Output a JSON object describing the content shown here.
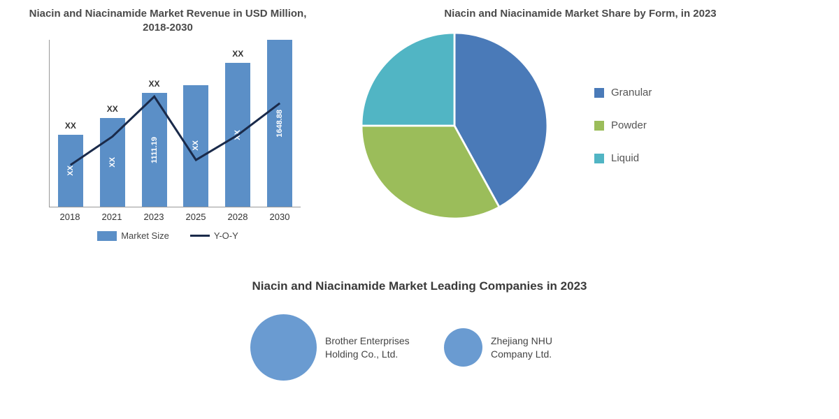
{
  "barChart": {
    "title": "Niacin and Niacinamide Market Revenue in USD Million, 2018-2030",
    "title_fontsize": 15,
    "title_color": "#4a4a4a",
    "categories": [
      "2018",
      "2021",
      "2023",
      "2025",
      "2028",
      "2030"
    ],
    "bar_heights_pct": [
      43,
      53,
      68,
      73,
      86,
      100
    ],
    "bar_labels": [
      "XX",
      "XX",
      "1111.19",
      "XX",
      "XX",
      "1648.88"
    ],
    "bar_annotations": [
      "XX",
      "XX",
      "XX",
      "",
      "XX",
      ""
    ],
    "bar_color": "#5b8fc7",
    "bar_label_color": "#ffffff",
    "yoy_points": [
      {
        "x": 8.3,
        "y": 75
      },
      {
        "x": 25,
        "y": 58
      },
      {
        "x": 41.7,
        "y": 34
      },
      {
        "x": 58.3,
        "y": 72
      },
      {
        "x": 75,
        "y": 57
      },
      {
        "x": 91.7,
        "y": 38
      }
    ],
    "yoy_color": "#1a2a4a",
    "yoy_line_width": 3,
    "axis_color": "#999999",
    "legend": {
      "bar_label": "Market Size",
      "line_label": "Y-O-Y"
    }
  },
  "pieChart": {
    "title": "Niacin and Niacinamide Market Share by Form, in 2023",
    "title_fontsize": 15,
    "title_color": "#4a4a4a",
    "slices": [
      {
        "label": "Granular",
        "value": 42,
        "color": "#4a7ab8"
      },
      {
        "label": "Powder",
        "value": 33,
        "color": "#9bbd5a"
      },
      {
        "label": "Liquid",
        "value": 25,
        "color": "#51b5c4"
      }
    ],
    "background_color": "#ffffff"
  },
  "leadingCompanies": {
    "title": "Niacin and Niacinamide Market Leading Companies in 2023",
    "title_fontsize": 17,
    "title_color": "#3a3a3a",
    "bubble_color": "#6a9bd1",
    "companies": [
      {
        "name": "Brother Enterprises Holding Co., Ltd.",
        "size": 95
      },
      {
        "name": "Zhejiang NHU Company Ltd.",
        "size": 55
      }
    ]
  }
}
